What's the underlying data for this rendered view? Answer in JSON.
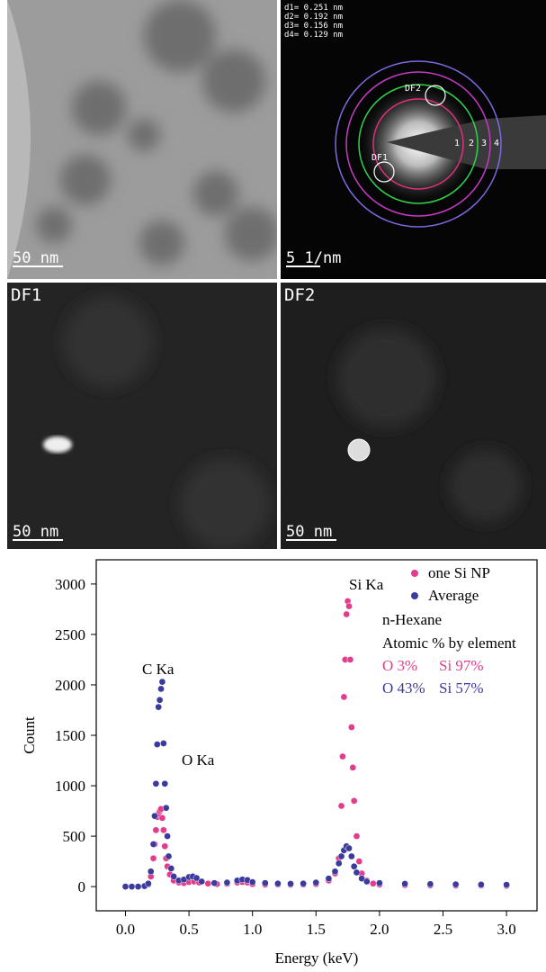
{
  "figure_panels": [
    {
      "scale_bar": "50 nm"
    },
    {
      "scale_bar": "5 1/nm",
      "d_spacings": [
        "d1= 0.251 nm",
        "d2= 0.192 nm",
        "d3= 0.156 nm",
        "d4= 0.129 nm"
      ],
      "ring_labels": [
        "1",
        "2",
        "3",
        "4"
      ],
      "aperture_labels": [
        "DF2",
        "DF1"
      ]
    },
    {
      "label": "DF1",
      "scale_bar": "50 nm"
    },
    {
      "label": "DF2",
      "scale_bar": "50 nm"
    }
  ],
  "chart_data": {
    "type": "scatter",
    "xlabel": "Energy (keV)",
    "ylabel": "Count",
    "xlim": [
      -0.23,
      3.24
    ],
    "ylim": [
      -240,
      3240
    ],
    "xticks": [
      {
        "value": 0,
        "label": "0.0"
      },
      0.5,
      {
        "value": 1,
        "label": "1.0"
      },
      1.5,
      {
        "value": 2,
        "label": "2.0"
      },
      2.5,
      {
        "value": 3,
        "label": "3.0"
      }
    ],
    "yticks": [
      0,
      500,
      1000,
      1500,
      2000,
      2500,
      3000
    ],
    "legend": "top-right",
    "series": [
      {
        "name": "one Si NP",
        "color": "#e23d8c",
        "x": [
          0.0,
          0.05,
          0.1,
          0.15,
          0.18,
          0.2,
          0.22,
          0.23,
          0.24,
          0.25,
          0.26,
          0.27,
          0.28,
          0.29,
          0.3,
          0.31,
          0.32,
          0.33,
          0.35,
          0.38,
          0.42,
          0.46,
          0.5,
          0.54,
          0.58,
          0.65,
          0.72,
          0.8,
          0.88,
          0.92,
          0.96,
          1.0,
          1.1,
          1.2,
          1.3,
          1.4,
          1.5,
          1.6,
          1.65,
          1.68,
          1.7,
          1.71,
          1.72,
          1.73,
          1.74,
          1.75,
          1.76,
          1.77,
          1.78,
          1.79,
          1.8,
          1.82,
          1.84,
          1.86,
          1.9,
          1.95,
          2.0,
          2.2,
          2.4,
          2.6,
          2.8,
          3.0
        ],
        "values": [
          0,
          0,
          0,
          5,
          20,
          100,
          280,
          420,
          560,
          690,
          720,
          750,
          770,
          680,
          560,
          400,
          280,
          200,
          120,
          60,
          40,
          35,
          45,
          50,
          40,
          30,
          25,
          28,
          40,
          45,
          40,
          25,
          20,
          20,
          18,
          20,
          25,
          60,
          130,
          280,
          800,
          1290,
          1880,
          2250,
          2700,
          2830,
          2780,
          2250,
          1580,
          1180,
          850,
          500,
          250,
          130,
          60,
          30,
          20,
          15,
          12,
          10,
          10,
          8
        ]
      },
      {
        "name": "Average",
        "color": "#3b3b9e",
        "x": [
          0.0,
          0.05,
          0.1,
          0.15,
          0.18,
          0.2,
          0.22,
          0.23,
          0.24,
          0.25,
          0.26,
          0.27,
          0.28,
          0.29,
          0.3,
          0.31,
          0.32,
          0.33,
          0.34,
          0.36,
          0.38,
          0.42,
          0.46,
          0.5,
          0.53,
          0.56,
          0.6,
          0.7,
          0.8,
          0.88,
          0.92,
          0.96,
          1.0,
          1.1,
          1.2,
          1.3,
          1.4,
          1.5,
          1.6,
          1.65,
          1.68,
          1.7,
          1.72,
          1.74,
          1.76,
          1.78,
          1.8,
          1.82,
          1.86,
          1.9,
          2.0,
          2.2,
          2.4,
          2.6,
          2.8,
          3.0
        ],
        "values": [
          0,
          0,
          0,
          5,
          30,
          150,
          420,
          700,
          1020,
          1410,
          1780,
          1850,
          1960,
          2030,
          1420,
          1020,
          780,
          500,
          300,
          180,
          100,
          60,
          70,
          95,
          100,
          85,
          50,
          35,
          40,
          60,
          70,
          65,
          45,
          35,
          30,
          28,
          30,
          40,
          80,
          150,
          230,
          300,
          360,
          400,
          380,
          300,
          200,
          140,
          80,
          50,
          35,
          28,
          25,
          22,
          20,
          18
        ]
      }
    ],
    "annotations": [
      {
        "text": "Si Ka",
        "color": "#000000"
      },
      {
        "text": "C Ka",
        "color": "#000000"
      },
      {
        "text": "O Ka",
        "color": "#000000"
      },
      {
        "text": "n-Hexane",
        "color": "#000000"
      },
      {
        "text": "Atomic % by element",
        "color": "#000000"
      },
      {
        "text": "O 3%",
        "color": "#e23d8c"
      },
      {
        "text": "Si 97%",
        "color": "#e23d8c"
      },
      {
        "text": "O 43%",
        "color": "#3b3b9e"
      },
      {
        "text": "Si 57%",
        "color": "#3b3b9e"
      }
    ]
  }
}
